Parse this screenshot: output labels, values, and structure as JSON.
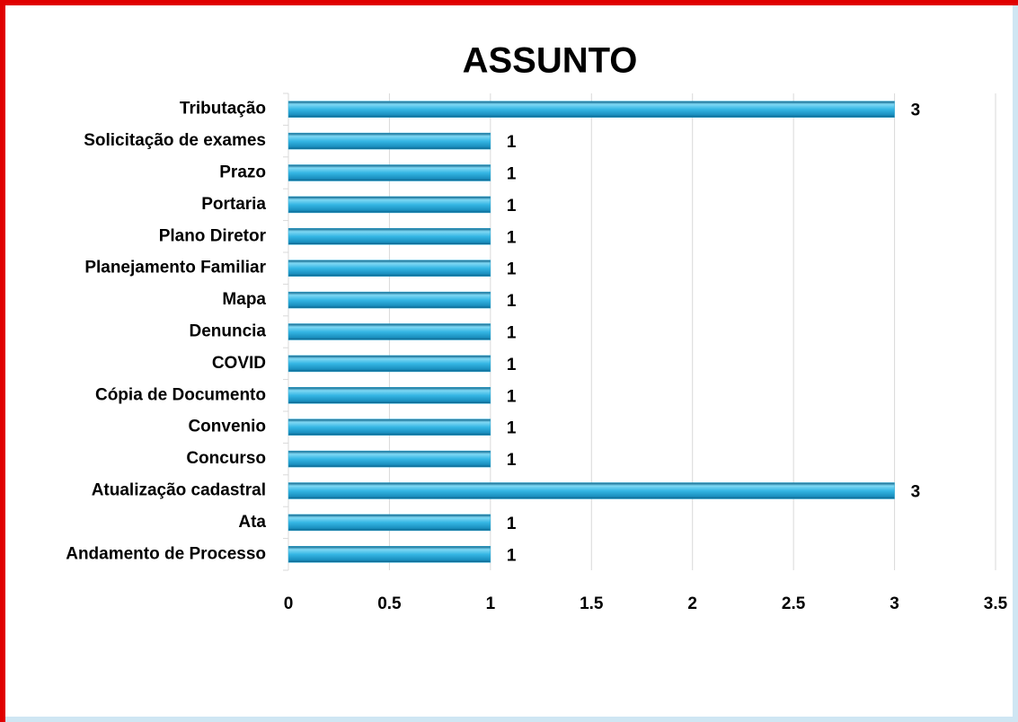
{
  "chart_data": {
    "type": "bar",
    "orientation": "horizontal",
    "title": "ASSUNTO",
    "categories": [
      "Andamento de Processo",
      "Ata",
      "Atualização cadastral",
      "Concurso",
      "Convenio",
      "Cópia de Documento",
      "COVID",
      "Denuncia",
      "Mapa",
      "Planejamento Familiar",
      "Plano Diretor",
      "Portaria",
      "Prazo",
      "Solicitação de exames",
      "Tributação"
    ],
    "values": [
      1,
      1,
      3,
      1,
      1,
      1,
      1,
      1,
      1,
      1,
      1,
      1,
      1,
      1,
      3
    ],
    "color": "#2aa9d6",
    "xlim": [
      0,
      3.5
    ],
    "xticks": [
      0,
      0.5,
      1,
      1.5,
      2,
      2.5,
      3,
      3.5
    ],
    "grid": true
  }
}
